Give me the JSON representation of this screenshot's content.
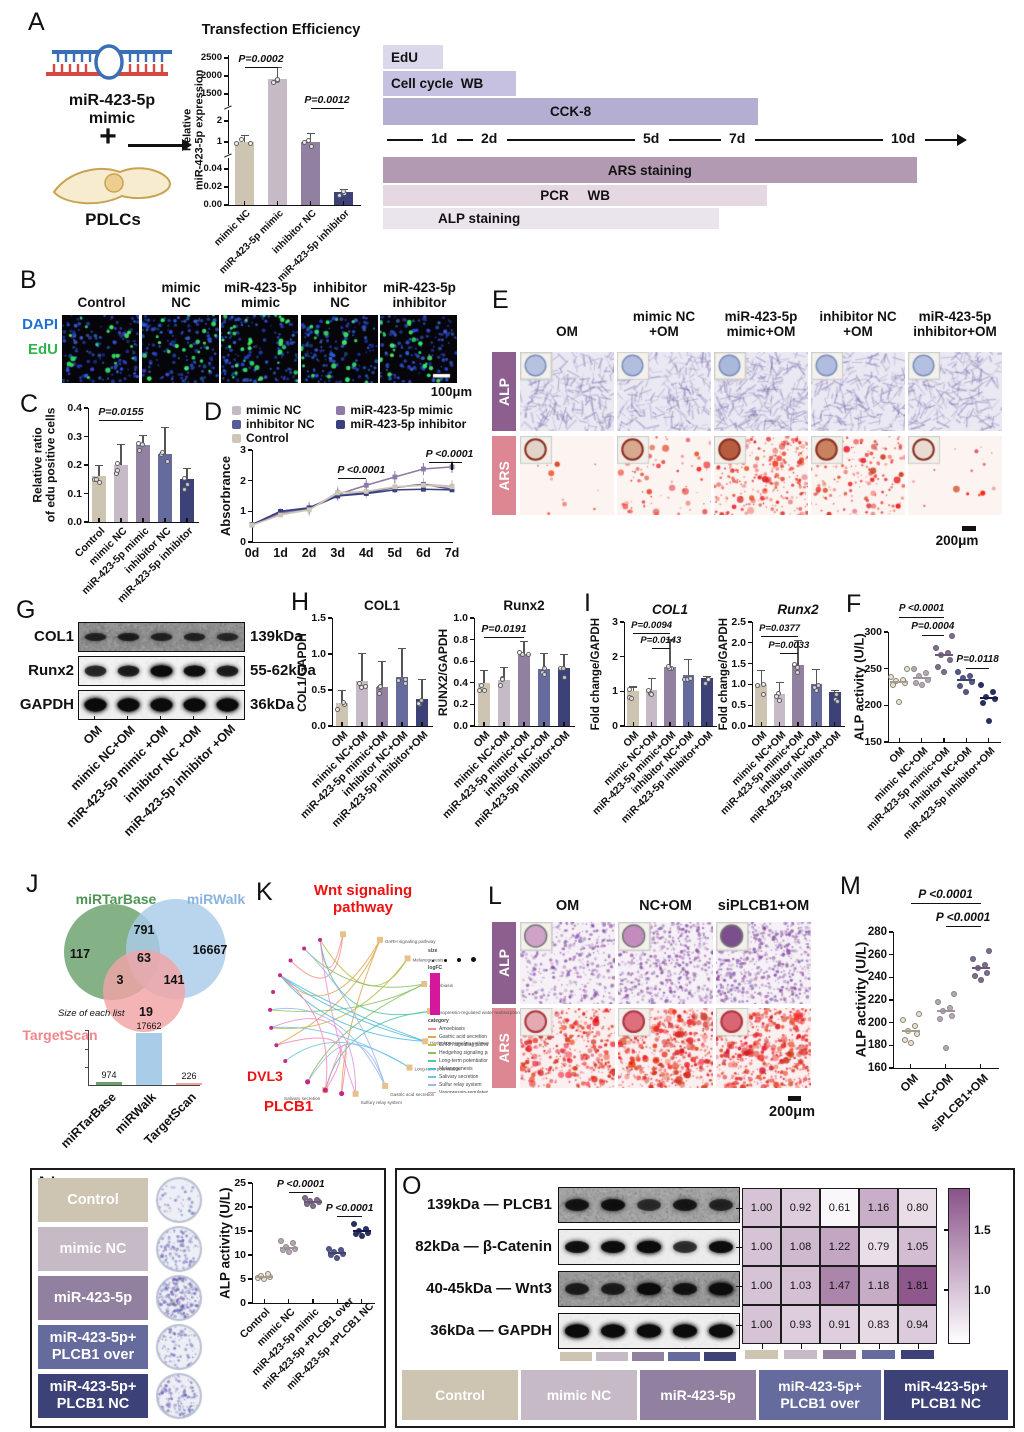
{
  "panels": {
    "A": "A",
    "B": "B",
    "C": "C",
    "D": "D",
    "E": "E",
    "F": "F",
    "G": "G",
    "H": "H",
    "I": "I",
    "J": "J",
    "K": "K",
    "L": "L",
    "M": "M",
    "N": "N",
    "O": "O"
  },
  "colors": {
    "group5": [
      "#cec4b2",
      "#c6bac6",
      "#91809f",
      "#666b9d",
      "#3c4277"
    ],
    "line5": [
      "#c3bac3",
      "#8d7aa6",
      "#565c96",
      "#39407f",
      "#cfc7b5"
    ],
    "alp_tag": "#8c5f8f",
    "ars_tag": "#dc8792",
    "dapi_blue": "#1f6ed4",
    "edu_green": "#2eb34d",
    "venn_green": "#6aa06c",
    "venn_blue": "#a9cce9",
    "venn_pink": "#f2a3a6",
    "heat_high": "#8a5389",
    "timeline": [
      "#dcd8ec",
      "#c6c0e1",
      "#b4aed3",
      "#b29bb2",
      "#e6d8e2",
      "#eae4ed"
    ]
  },
  "panelA": {
    "construct_lines": [
      "miR-423-5p",
      "mimic"
    ],
    "plus": "+",
    "cell_label": "PDLCs"
  },
  "timeline": {
    "above": [
      {
        "label": "EdU"
      },
      {
        "label": "Cell cycle  WB"
      },
      {
        "label": "CCK-8"
      }
    ],
    "ticks": [
      "1d",
      "2d",
      "5d",
      "7d",
      "10d"
    ],
    "below": [
      {
        "label": "ARS staining"
      },
      {
        "label": "PCR     WB"
      },
      {
        "label": "ALP staining"
      }
    ]
  },
  "panelB": {
    "headers": [
      [
        "Control"
      ],
      [
        "mimic",
        "NC"
      ],
      [
        "miR-423-5p",
        "mimic"
      ],
      [
        "inhibitor",
        "NC"
      ],
      [
        "miR-423-5p",
        "inhibitor"
      ]
    ],
    "row_labels": [
      "DAPI",
      "EdU"
    ],
    "scale": "100μm"
  },
  "panelE": {
    "headers": [
      [
        "OM"
      ],
      [
        "mimic NC",
        "+OM"
      ],
      [
        "miR-423-5p",
        "mimic+OM"
      ],
      [
        "inhibitor NC",
        "+OM"
      ],
      [
        "miR-423-5p",
        "inhibitor+OM"
      ]
    ],
    "row_labels": [
      "ALP",
      "ARS"
    ],
    "scale": "200μm"
  },
  "panelG": {
    "proteins": [
      {
        "name": "COL1",
        "kda": "139kDa"
      },
      {
        "name": "Runx2",
        "kda": "55-62kDa"
      },
      {
        "name": "GAPDH",
        "kda": "36kDa"
      }
    ],
    "lanes": [
      "OM",
      "mimic NC+OM",
      "miR-423-5p mimic +OM",
      "inhibitor NC +OM",
      "miR-423-5p inhibitor +OM"
    ]
  },
  "panelK": {
    "title": [
      "Wnt signaling",
      "pathway"
    ],
    "gene_dvl3": "DVL3",
    "gene_plcb1": "PLCB1",
    "pathways": [
      "GnRH signaling pathway",
      "Melanogenesis",
      "Amoebiasis",
      "Vasopressin-regulated water reabsorption",
      "Hedgehog signaling pathway",
      "Long-term potentiation",
      "Gastric acid secretion",
      "Sulfury relay system",
      "Salivary secretion"
    ],
    "legend": {
      "size_title": "size",
      "bar_title": "logFC",
      "category_title": "category",
      "categories": [
        "Amoebiasis",
        "Gastric acid secretion",
        "GnRH signaling pathway",
        "Hedgehog signaling pathway",
        "Long-term potentiation",
        "Melanogenesis",
        "Salivary secretion",
        "Sulfur relay system",
        "Vasopressin-regulated water reabsorption",
        "Wnt signaling pathway"
      ]
    }
  },
  "panelL": {
    "headers": [
      "OM",
      "NC+OM",
      "siPLCB1+OM"
    ],
    "row_labels": [
      "ALP",
      "ARS"
    ],
    "scale": "200μm"
  },
  "panelN": {
    "groups": [
      [
        "Control"
      ],
      [
        "mimic NC"
      ],
      [
        "miR-423-5p"
      ],
      [
        "miR-423-5p+",
        "PLCB1 over"
      ],
      [
        "miR-423-5p+",
        "PLCB1 NC"
      ]
    ]
  },
  "panelO": {
    "proteins": [
      {
        "kda": "139kDa",
        "name": "PLCB1"
      },
      {
        "kda": "82kDa",
        "name": "β-Catenin"
      },
      {
        "kda": "40-45kDa",
        "name": "Wnt3"
      },
      {
        "kda": "36kDa",
        "name": "GAPDH"
      }
    ],
    "groups": [
      [
        "Control"
      ],
      [
        "mimic NC"
      ],
      [
        "miR-423-5p"
      ],
      [
        "miR-423-5p+",
        "PLCB1 over"
      ],
      [
        "miR-423-5p+",
        "PLCB1 NC"
      ]
    ]
  },
  "chart_data": {
    "transfection": {
      "type": "bar",
      "title": "Transfection Efficiency",
      "ylabel": "Relative miR-423-5p expression",
      "categories": [
        "mimic NC",
        "miR-423-5p mimic",
        "inhibitor NC",
        "miR-423-5p inhibitor"
      ],
      "values": [
        1,
        1900,
        1,
        0.015
      ],
      "ytick_labels": [
        "0.00",
        "0.02",
        "0.04",
        "1",
        "2",
        "1500",
        "2000",
        "2500"
      ],
      "axis_break": true,
      "annotations": [
        {
          "label": "P=0.0002",
          "from": 0,
          "to": 1
        },
        {
          "label": "P=0.0012",
          "from": 2,
          "to": 3
        }
      ]
    },
    "edu_ratio": {
      "type": "bar",
      "ylabel": [
        "Relative ratio",
        "of edu positive cells"
      ],
      "ylim": [
        0,
        0.4
      ],
      "yticks": [
        "0.0",
        "0.1",
        "0.2",
        "0.3",
        "0.4"
      ],
      "categories": [
        "Control",
        "mimic NC",
        "miR-423-5p mimic",
        "inhibitor NC",
        "miR-423-5p inhibitor"
      ],
      "values": [
        0.16,
        0.2,
        0.27,
        0.24,
        0.15
      ],
      "errors": [
        0.04,
        0.075,
        0.035,
        0.095,
        0.04
      ],
      "annotations": [
        {
          "label": "P=0.0155",
          "from": 0,
          "to": 2
        }
      ]
    },
    "cck8": {
      "type": "line",
      "ylabel": "Absorbrance",
      "ylim": [
        0,
        3
      ],
      "yticks": [
        "0",
        "1",
        "2",
        "3"
      ],
      "x": [
        "0d",
        "1d",
        "2d",
        "3d",
        "4d",
        "5d",
        "6d",
        "7d"
      ],
      "series": [
        {
          "name": "mimic NC",
          "values": [
            0.55,
            0.9,
            1.05,
            1.62,
            1.62,
            1.78,
            1.88,
            1.82
          ]
        },
        {
          "name": "miR-423-5p mimic",
          "values": [
            0.55,
            0.95,
            1.1,
            1.55,
            1.85,
            2.12,
            2.38,
            2.45
          ]
        },
        {
          "name": "inhibitor NC",
          "values": [
            0.57,
            1.0,
            1.12,
            1.52,
            1.6,
            1.78,
            1.88,
            1.72
          ]
        },
        {
          "name": "miR-423-5p inhibitor",
          "values": [
            0.55,
            1.0,
            1.1,
            1.5,
            1.58,
            1.7,
            1.72,
            1.7
          ]
        },
        {
          "name": "Control",
          "values": [
            0.55,
            0.88,
            1.05,
            1.6,
            1.65,
            1.8,
            1.85,
            1.8
          ]
        }
      ],
      "annotations": [
        {
          "label": "P <0.0001"
        },
        {
          "label": "P <0.0001"
        }
      ]
    },
    "h_col1": {
      "type": "bar",
      "title": "COL1",
      "ylabel": "COL1/GAPDH",
      "ylim": [
        0,
        1.5
      ],
      "yticks": [
        "0.0",
        "0.5",
        "1.0",
        "1.5"
      ],
      "categories": [
        "OM",
        "mimic NC+OM",
        "miR-423-5p mimic+OM",
        "inhibitor NC+OM",
        "miR-423-5p inhibitor+OM"
      ],
      "values": [
        0.32,
        0.63,
        0.54,
        0.68,
        0.38
      ],
      "errors": [
        0.18,
        0.38,
        0.36,
        0.4,
        0.27
      ],
      "annotations": []
    },
    "h_runx2": {
      "type": "bar",
      "title": "Runx2",
      "ylabel": "RUNX2/GAPDH",
      "ylim": [
        0,
        1.0
      ],
      "yticks": [
        "0.0",
        "0.2",
        "0.4",
        "0.6",
        "0.8",
        "1.0"
      ],
      "categories": [
        "OM",
        "mimic NC+OM",
        "miR-423-5p mimic+OM",
        "inhibitor NC+OM",
        "miR-423-5p inhibitor+OM"
      ],
      "values": [
        0.4,
        0.43,
        0.67,
        0.53,
        0.54
      ],
      "errors": [
        0.12,
        0.12,
        0.12,
        0.15,
        0.13
      ],
      "annotations": [
        {
          "label": "P=0.0191",
          "from": 0,
          "to": 2
        }
      ]
    },
    "i_col1": {
      "type": "bar",
      "title": "COL1",
      "ylabel": "Fold change/GAPDH",
      "ylim": [
        0,
        3
      ],
      "yticks": [
        "0",
        "1",
        "2",
        "3"
      ],
      "categories": [
        "OM",
        "mimic NC+OM",
        "miR-423-5p mimic+OM",
        "inhibitor NC+OM",
        "miR-423-5p inhibitor+OM"
      ],
      "values": [
        1.02,
        1.04,
        1.7,
        1.48,
        1.38
      ],
      "errors": [
        0.12,
        0.35,
        0.82,
        0.45,
        0.06
      ],
      "annotations": [
        {
          "label": "P=0.0094",
          "from": 0,
          "to": 2
        },
        {
          "label": "P=0.0143",
          "from": 1,
          "to": 2
        }
      ]
    },
    "i_runx2": {
      "type": "bar",
      "title": "Runx2",
      "ylabel": "Fold change/GAPDH",
      "ylim": [
        0,
        2.5
      ],
      "yticks": [
        "0.0",
        "0.5",
        "1.0",
        "1.5",
        "2.0",
        "2.5"
      ],
      "categories": [
        "OM",
        "mimic NC+OM",
        "miR-423-5p mimic+OM",
        "inhibitor NC+OM",
        "miR-423-5p inhibitor+OM"
      ],
      "values": [
        1.0,
        0.78,
        1.47,
        1.0,
        0.82
      ],
      "errors": [
        0.35,
        0.28,
        0.6,
        0.38,
        0.05
      ],
      "annotations": [
        {
          "label": "P=0.0377",
          "from": 0,
          "to": 2
        },
        {
          "label": "P=0.0033",
          "from": 1,
          "to": 2
        }
      ]
    },
    "f_alp": {
      "type": "scatter",
      "ylabel": "ALP activity (U/L)",
      "ylim": [
        150,
        300
      ],
      "yticks": [
        "150",
        "200",
        "250",
        "300"
      ],
      "categories": [
        "OM",
        "mimic NC+OM",
        "miR-423-5p mimic+OM",
        "inhibitor NC+OM",
        "miR-423-5p inhibitor+OM"
      ],
      "groups": [
        [
          204,
          228,
          231,
          233,
          235,
          238,
          250
        ],
        [
          228,
          231,
          234,
          240,
          244,
          250
        ],
        [
          245,
          252,
          262,
          268,
          272,
          278,
          295
        ],
        [
          218,
          226,
          232,
          237,
          240,
          245
        ],
        [
          178,
          203,
          208,
          212,
          218,
          228
        ]
      ],
      "means": [
        232,
        237,
        268,
        235,
        210
      ],
      "annotations": [
        {
          "label": "P <0.0001",
          "from": 0,
          "to": 2
        },
        {
          "label": "P=0.0004",
          "from": 1,
          "to": 2
        },
        {
          "label": "P=0.0118",
          "from": 3,
          "to": 4
        }
      ]
    },
    "m_alp": {
      "type": "scatter",
      "ylabel": "ALP activity (U/L)",
      "ylim": [
        160,
        280
      ],
      "yticks": [
        "160",
        "180",
        "200",
        "220",
        "240",
        "260",
        "280"
      ],
      "categories": [
        "OM",
        "NC+OM",
        "siPLCB1+OM"
      ],
      "groups": [
        [
          182,
          185,
          190,
          193,
          197,
          202,
          208
        ],
        [
          178,
          203,
          206,
          210,
          213,
          218,
          225
        ],
        [
          238,
          241,
          244,
          248,
          251,
          256,
          263
        ]
      ],
      "means": [
        193,
        210,
        248
      ],
      "annotations": [
        {
          "label": "P <0.0001",
          "from": 0,
          "to": 2
        },
        {
          "label": "P <0.0001",
          "from": 1,
          "to": 2
        }
      ]
    },
    "n_alp": {
      "type": "scatter",
      "ylabel": "ALP activity (U/L)",
      "ylim": [
        0,
        25
      ],
      "yticks": [
        "0",
        "5",
        "10",
        "15",
        "20",
        "25"
      ],
      "categories": [
        "Control",
        "mimic NC",
        "miR-423-5p mimic",
        "miR-423-5p +PLCB1 over",
        "miR-423-5p +PLCB1 NC"
      ],
      "groups": [
        [
          5,
          5.2,
          5.5,
          5.7,
          6
        ],
        [
          10.7,
          11,
          11.2,
          11.6,
          12.4,
          13
        ],
        [
          20.3,
          20.7,
          21,
          21.2,
          21.5,
          21.9
        ],
        [
          9.4,
          10,
          10.3,
          10.7,
          11,
          11.3
        ],
        [
          14,
          14.3,
          14.6,
          15,
          15.5,
          16.5
        ]
      ],
      "means": [
        5.5,
        11.5,
        21.1,
        10.5,
        15
      ],
      "annotations": [
        {
          "label": "P <0.0001",
          "from": 1,
          "to": 2
        },
        {
          "label": "P <0.0001",
          "from": 3,
          "to": 4
        }
      ]
    },
    "venn": {
      "type": "venn",
      "sets": [
        {
          "name": "miRTarBase",
          "unique": "117"
        },
        {
          "name": "miRWalk",
          "unique": "16667"
        },
        {
          "name": "TargetScan",
          "unique": "19"
        }
      ],
      "overlaps": {
        "miRTarBase_miRWalk": "791",
        "miRTarBase_TargetScan": "3",
        "miRWalk_TargetScan": "141",
        "all": "63"
      }
    },
    "list_sizes": {
      "type": "bar",
      "title": "Size of each list",
      "categories": [
        "miRTarBase",
        "miRWalk",
        "TargetScan"
      ],
      "values": [
        974,
        17662,
        226
      ],
      "value_labels": [
        "974",
        "17662",
        "226"
      ]
    },
    "o_heatmap": {
      "type": "heatmap",
      "rows": [
        "PLCB1",
        "β-Catenin",
        "Wnt3",
        "GAPDH"
      ],
      "cols": [
        "Control",
        "mimic NC",
        "miR-423-5p",
        "miR-423-5p+PLCB1 over",
        "miR-423-5p+PLCB1 NC"
      ],
      "values": [
        [
          1.0,
          0.92,
          0.61,
          1.16,
          0.8
        ],
        [
          1.0,
          1.08,
          1.22,
          0.79,
          1.05
        ],
        [
          1.0,
          1.03,
          1.47,
          1.18,
          1.81
        ],
        [
          1.0,
          0.93,
          0.91,
          0.83,
          0.94
        ]
      ],
      "colorbar_ticks": [
        {
          "label": "1.5",
          "value": 1.5
        },
        {
          "label": "1.0",
          "value": 1.0
        }
      ]
    }
  }
}
